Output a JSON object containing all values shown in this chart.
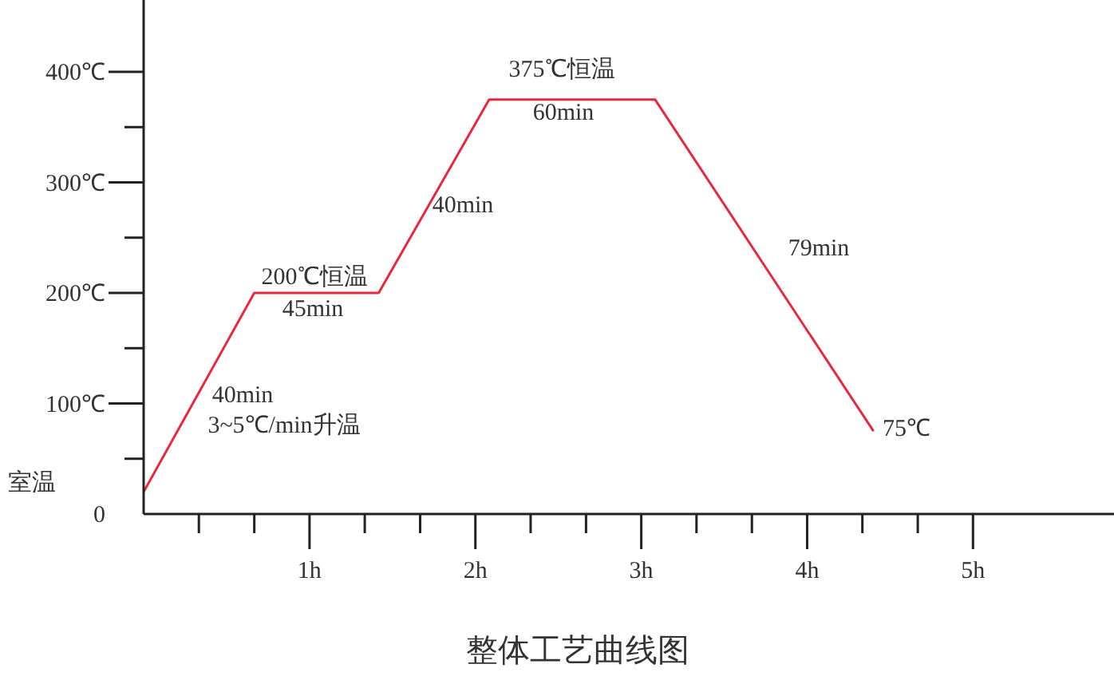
{
  "chart_data": {
    "type": "line",
    "title": "整体工艺曲线图",
    "x": [
      0,
      0.667,
      1.417,
      2.083,
      3.083,
      4.4
    ],
    "series": [
      {
        "color": "#e8283c",
        "values": [
          20,
          200,
          200,
          375,
          375,
          75
        ]
      }
    ],
    "xlim": [
      0,
      5.85
    ],
    "xticks": [
      {
        "value": 0.333,
        "label": null
      },
      {
        "value": 0.667,
        "label": null
      },
      {
        "value": 1,
        "label": "1h"
      },
      {
        "value": 1.333,
        "label": null
      },
      {
        "value": 1.667,
        "label": null
      },
      {
        "value": 2,
        "label": "2h"
      },
      {
        "value": 2.333,
        "label": null
      },
      {
        "value": 2.667,
        "label": null
      },
      {
        "value": 3,
        "label": "3h"
      },
      {
        "value": 3.333,
        "label": null
      },
      {
        "value": 3.667,
        "label": null
      },
      {
        "value": 4,
        "label": "4h"
      },
      {
        "value": 4.333,
        "label": null
      },
      {
        "value": 4.667,
        "label": null
      },
      {
        "value": 5,
        "label": "5h"
      }
    ],
    "ylim": [
      0,
      465
    ],
    "yticks": [
      0,
      {
        "value": 50,
        "label": null
      },
      {
        "value": 100,
        "label": "100℃"
      },
      {
        "value": 150,
        "label": null
      },
      {
        "value": 200,
        "label": "200℃"
      },
      {
        "value": 250,
        "label": null
      },
      {
        "value": 300,
        "label": "300℃"
      },
      {
        "value": 350,
        "label": null
      },
      {
        "value": 400,
        "label": "400℃"
      }
    ],
    "annotations": [
      "室温",
      "40min",
      "3~5℃/min升温",
      "200℃恒温",
      "45min",
      "40min",
      "375℃恒温",
      "60min",
      "79min",
      "75℃"
    ],
    "grid": false,
    "legend": false,
    "marker": "none",
    "line_style": "solid"
  }
}
